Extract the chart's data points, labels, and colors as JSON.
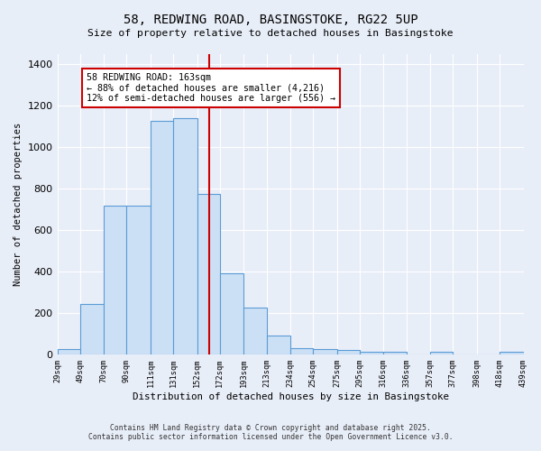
{
  "title_line1": "58, REDWING ROAD, BASINGSTOKE, RG22 5UP",
  "title_line2": "Size of property relative to detached houses in Basingstoke",
  "xlabel": "Distribution of detached houses by size in Basingstoke",
  "ylabel": "Number of detached properties",
  "bar_edges": [
    29,
    49,
    70,
    90,
    111,
    131,
    152,
    172,
    193,
    213,
    234,
    254,
    275,
    295,
    316,
    336,
    357,
    377,
    398,
    418,
    439
  ],
  "bar_heights": [
    25,
    245,
    720,
    720,
    1130,
    1140,
    775,
    390,
    225,
    90,
    30,
    25,
    20,
    15,
    15,
    0,
    15,
    0,
    0,
    15
  ],
  "bar_color": "#cce0f5",
  "bar_edgecolor": "#5b9bd5",
  "redline_x": 163,
  "annotation_title": "58 REDWING ROAD: 163sqm",
  "annotation_line1": "← 88% of detached houses are smaller (4,216)",
  "annotation_line2": "12% of semi-detached houses are larger (556) →",
  "annotation_box_color": "#ffffff",
  "annotation_box_edgecolor": "#cc0000",
  "redline_color": "#cc0000",
  "ylim": [
    0,
    1450
  ],
  "yticks": [
    0,
    200,
    400,
    600,
    800,
    1000,
    1200,
    1400
  ],
  "bg_color": "#e8eef8",
  "grid_color": "#ffffff",
  "footer_line1": "Contains HM Land Registry data © Crown copyright and database right 2025.",
  "footer_line2": "Contains public sector information licensed under the Open Government Licence v3.0."
}
